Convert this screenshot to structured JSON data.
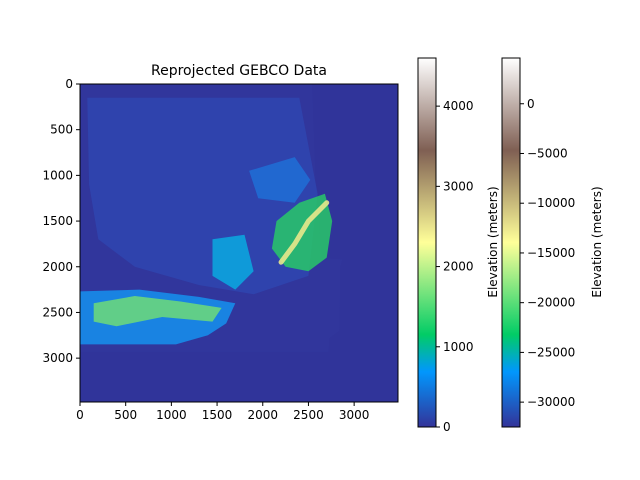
{
  "chart_data": [
    {
      "type": "heatmap",
      "title": "Reprojected GEBCO Data",
      "xlabel": "",
      "ylabel": "",
      "xlim": [
        0,
        3480
      ],
      "ylim": [
        3480,
        0
      ],
      "xticks": [
        0,
        500,
        1000,
        1500,
        2000,
        2500,
        3000
      ],
      "yticks": [
        0,
        500,
        1000,
        1500,
        2000,
        2500,
        3000
      ],
      "grid": false,
      "colormap": "terrain",
      "background_value_color": "#30349a",
      "regions": [
        {
          "name": "data footprint",
          "polygon": [
            [
              0,
              0
            ],
            [
              2540,
              0
            ],
            [
              2580,
              1100
            ],
            [
              2640,
              1900
            ],
            [
              2870,
              1920
            ],
            [
              2850,
              2000
            ],
            [
              2840,
              2700
            ],
            [
              2730,
              2780
            ],
            [
              2720,
              2930
            ],
            [
              0,
              2930
            ]
          ]
        },
        {
          "name": "low plains",
          "polygon": [
            [
              80,
              150
            ],
            [
              2400,
              150
            ],
            [
              2600,
              1200
            ],
            [
              2500,
              2100
            ],
            [
              1900,
              2300
            ],
            [
              1300,
              2200
            ],
            [
              600,
              2000
            ],
            [
              200,
              1700
            ],
            [
              100,
              1100
            ]
          ]
        },
        {
          "name": "northern highlands",
          "polygon": [
            [
              1850,
              950
            ],
            [
              2350,
              800
            ],
            [
              2520,
              1050
            ],
            [
              2350,
              1300
            ],
            [
              1950,
              1250
            ]
          ]
        },
        {
          "name": "central massif",
          "polygon": [
            [
              1450,
              1700
            ],
            [
              1800,
              1650
            ],
            [
              1900,
              2050
            ],
            [
              1700,
              2250
            ],
            [
              1450,
              2100
            ]
          ]
        },
        {
          "name": "alpine arc",
          "polygon": [
            [
              2150,
              1500
            ],
            [
              2400,
              1300
            ],
            [
              2680,
              1200
            ],
            [
              2760,
              1500
            ],
            [
              2700,
              1900
            ],
            [
              2500,
              2050
            ],
            [
              2250,
              2000
            ],
            [
              2100,
              1800
            ]
          ]
        },
        {
          "name": "peninsula",
          "polygon": [
            [
              0,
              2270
            ],
            [
              650,
              2250
            ],
            [
              1300,
              2330
            ],
            [
              1700,
              2400
            ],
            [
              1600,
              2620
            ],
            [
              1400,
              2750
            ],
            [
              1050,
              2850
            ],
            [
              0,
              2850
            ]
          ]
        },
        {
          "name": "peninsula ranges",
          "polygon": [
            [
              150,
              2400
            ],
            [
              600,
              2320
            ],
            [
              1100,
              2380
            ],
            [
              1550,
              2450
            ],
            [
              1450,
              2600
            ],
            [
              900,
              2550
            ],
            [
              400,
              2650
            ],
            [
              150,
              2600
            ]
          ]
        }
      ]
    },
    {
      "type": "colorbar",
      "label": "Elevation (meters)",
      "range": [
        0,
        4600
      ],
      "ticks": [
        0,
        1000,
        2000,
        3000,
        4000
      ],
      "colormap": "terrain"
    },
    {
      "type": "colorbar",
      "label": "Elevation (meters)",
      "range": [
        -32500,
        4600
      ],
      "ticks": [
        -30000,
        -25000,
        -20000,
        -15000,
        -10000,
        -5000,
        0
      ],
      "colormap": "terrain"
    }
  ],
  "colors": {
    "terrain_stops": [
      "#333399",
      "#0197fd",
      "#01cc66",
      "#ffff99",
      "#7f5f53",
      "#ffffff"
    ],
    "ocean": "#30349a"
  }
}
